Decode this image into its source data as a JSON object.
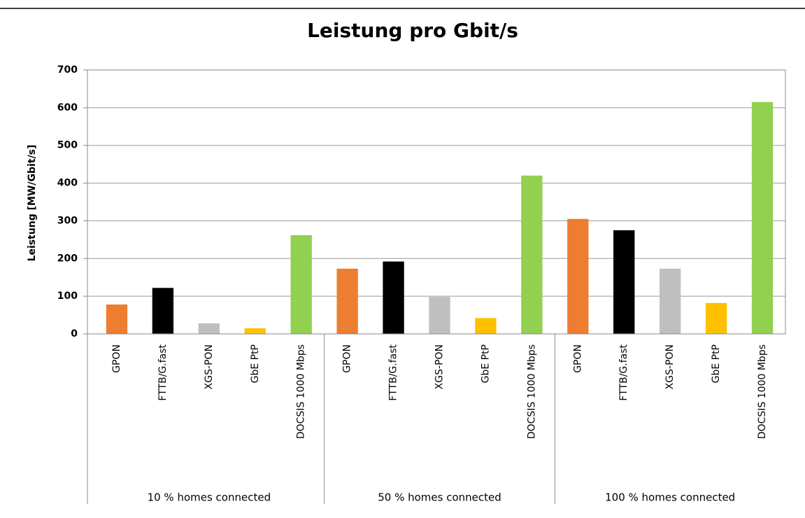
{
  "chart_data": {
    "type": "bar",
    "title": "Leistung pro Gbit/s",
    "y_label": "Leistung [MW/Gbit/s]",
    "categories": [
      "10 % homes connected",
      "50 % homes connected",
      "100 % homes connected"
    ],
    "series": [
      {
        "name": "GPON",
        "color": "#ed7d31",
        "values": [
          78,
          173,
          305
        ]
      },
      {
        "name": "FTTB/G.fast",
        "color": "#000000",
        "values": [
          122,
          192,
          275
        ]
      },
      {
        "name": "XGS-PON",
        "color": "#bfbfbf",
        "values": [
          28,
          98,
          173
        ]
      },
      {
        "name": "GbE PtP",
        "color": "#ffc000",
        "values": [
          15,
          42,
          82
        ]
      },
      {
        "name": "DOCSIS 1000 Mbps",
        "color": "#92d050",
        "values": [
          262,
          420,
          615
        ]
      }
    ],
    "ylim": [
      0,
      700
    ],
    "yticks": [
      0,
      100,
      200,
      300,
      400,
      500,
      600,
      700
    ],
    "grid": true
  }
}
